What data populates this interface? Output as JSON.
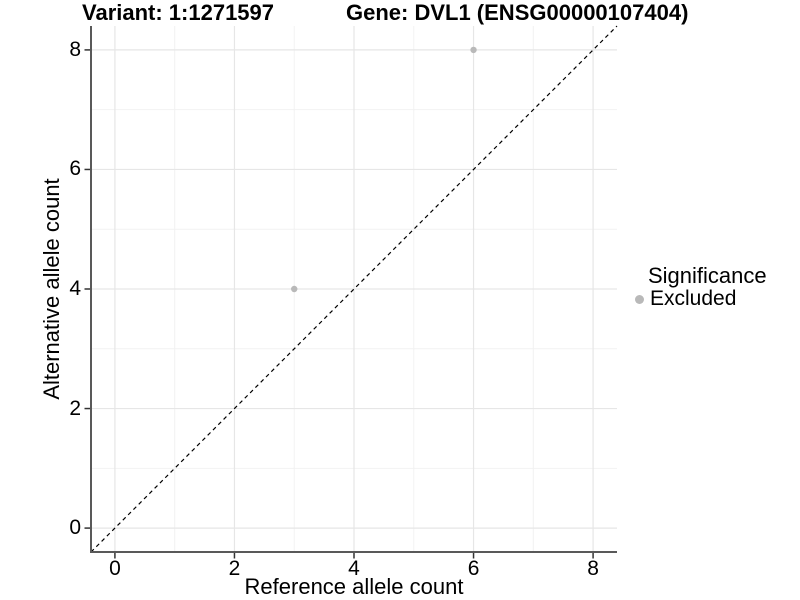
{
  "titles": {
    "variant": "Variant: 1:1271597",
    "gene": "Gene: DVL1 (ENSG00000107404)"
  },
  "chart_data": {
    "type": "scatter",
    "title_left": "Variant: 1:1271597",
    "title_right": "Gene: DVL1 (ENSG00000107404)",
    "xlabel": "Reference allele count",
    "ylabel": "Alternative allele count",
    "xlim": [
      -0.4,
      8.4
    ],
    "ylim": [
      -0.4,
      8.4
    ],
    "xticks": [
      0,
      2,
      4,
      6,
      8
    ],
    "yticks": [
      0,
      2,
      4,
      6,
      8
    ],
    "grid": "major and minor gridlines, light gray on white",
    "reference_line": {
      "type": "identity y=x",
      "style": "dashed",
      "color": "#000000"
    },
    "series": [
      {
        "name": "Excluded",
        "color": "#b9b9b9",
        "points": [
          [
            3,
            4
          ],
          [
            6,
            8
          ]
        ]
      }
    ],
    "legend": {
      "position": "right",
      "title": "Significance",
      "items": [
        {
          "label": "Excluded",
          "color": "#b9b9b9"
        }
      ]
    }
  },
  "colors": {
    "background": "#ffffff",
    "grid_major": "#e6e6e6",
    "grid_minor": "#f2f2f2",
    "axis_line": "#595959",
    "tick_mark": "#333333",
    "text": "#000000",
    "point": "#b9b9b9"
  }
}
